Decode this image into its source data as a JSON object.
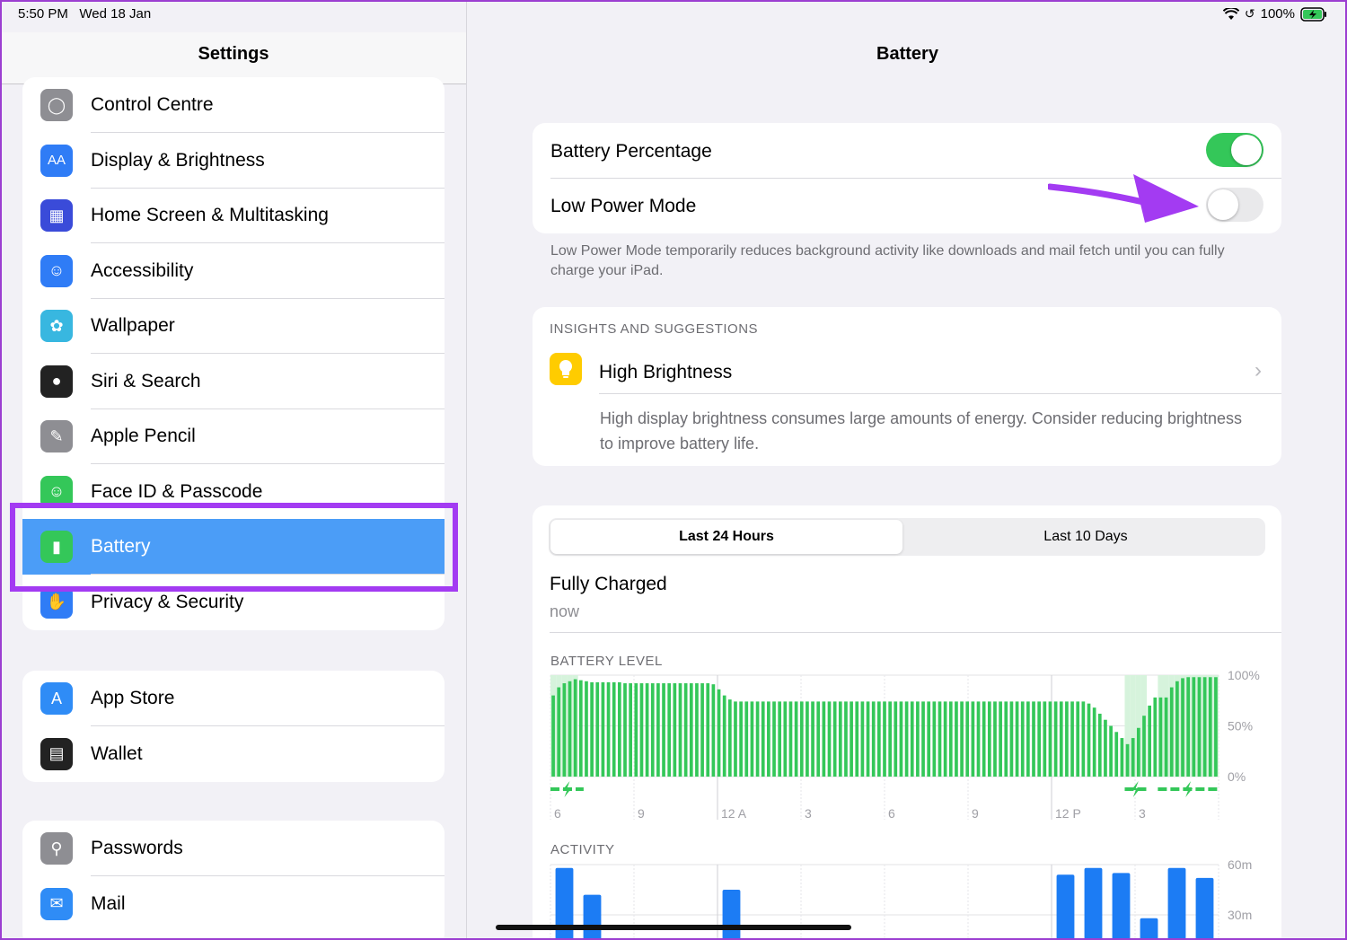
{
  "status": {
    "time": "5:50 PM",
    "date": "Wed 18 Jan",
    "battery": "100%"
  },
  "sidebar": {
    "title": "Settings",
    "group1": [
      {
        "label": "Control Centre",
        "icon": "toggles-icon",
        "color": "#8e8e93"
      },
      {
        "label": "Display & Brightness",
        "icon": "text-size-icon",
        "color": "#2f7cf6"
      },
      {
        "label": "Home Screen & Multitasking",
        "icon": "grid-icon",
        "color": "#3a4bd9"
      },
      {
        "label": "Accessibility",
        "icon": "accessibility-icon",
        "color": "#2f7cf6"
      },
      {
        "label": "Wallpaper",
        "icon": "flower-icon",
        "color": "#38b7e0"
      },
      {
        "label": "Siri & Search",
        "icon": "siri-icon",
        "color": "#222"
      },
      {
        "label": "Apple Pencil",
        "icon": "pencil-icon",
        "color": "#8e8e93"
      },
      {
        "label": "Face ID & Passcode",
        "icon": "face-id-icon",
        "color": "#34c759"
      },
      {
        "label": "Battery",
        "icon": "battery-icon",
        "color": "#34c759"
      },
      {
        "label": "Privacy & Security",
        "icon": "hand-icon",
        "color": "#2f7cf6"
      }
    ],
    "group2": [
      {
        "label": "App Store",
        "icon": "app-store-icon",
        "color": "#2f8cf6"
      },
      {
        "label": "Wallet",
        "icon": "wallet-icon",
        "color": "#222"
      }
    ],
    "group3": [
      {
        "label": "Passwords",
        "icon": "key-icon",
        "color": "#8e8e93"
      },
      {
        "label": "Mail",
        "icon": "mail-icon",
        "color": "#2f8cf6"
      }
    ]
  },
  "main": {
    "title": "Battery",
    "battery_percentage_label": "Battery Percentage",
    "battery_percentage_on": true,
    "low_power_label": "Low Power Mode",
    "low_power_on": false,
    "low_power_footnote": "Low Power Mode temporarily reduces background activity like downloads and mail fetch until you can fully charge your iPad.",
    "insights_header": "INSIGHTS AND SUGGESTIONS",
    "insight_title": "High Brightness",
    "insight_body": "High display brightness consumes large amounts of energy. Consider reducing brightness to improve battery life.",
    "seg_24h": "Last 24 Hours",
    "seg_10d": "Last 10 Days",
    "charged_title": "Fully Charged",
    "charged_time": "now",
    "battery_level_header": "BATTERY LEVEL",
    "activity_header": "ACTIVITY"
  },
  "chart_data": [
    {
      "type": "bar",
      "title": "BATTERY LEVEL",
      "ylim": [
        0,
        100
      ],
      "y_ticks": [
        "100%",
        "50%",
        "0%"
      ],
      "x_ticks": [
        "6",
        "9",
        "12 A",
        "3",
        "6",
        "9",
        "12 P",
        "3"
      ],
      "values": [
        80,
        88,
        92,
        94,
        96,
        95,
        94,
        93,
        93,
        93,
        93,
        93,
        93,
        92,
        92,
        92,
        92,
        92,
        92,
        92,
        92,
        92,
        92,
        92,
        92,
        92,
        92,
        92,
        92,
        91,
        86,
        80,
        76,
        74,
        74,
        74,
        74,
        74,
        74,
        74,
        74,
        74,
        74,
        74,
        74,
        74,
        74,
        74,
        74,
        74,
        74,
        74,
        74,
        74,
        74,
        74,
        74,
        74,
        74,
        74,
        74,
        74,
        74,
        74,
        74,
        74,
        74,
        74,
        74,
        74,
        74,
        74,
        74,
        74,
        74,
        74,
        74,
        74,
        74,
        74,
        74,
        74,
        74,
        74,
        74,
        74,
        74,
        74,
        74,
        74,
        74,
        74,
        74,
        74,
        74,
        74,
        74,
        72,
        68,
        62,
        56,
        50,
        44,
        38,
        32,
        38,
        48,
        60,
        70,
        78,
        78,
        78,
        88,
        94,
        97,
        98,
        98,
        98,
        98,
        98,
        98
      ],
      "charging": [
        true,
        true,
        true,
        true,
        true,
        false,
        false,
        false,
        false,
        false,
        false,
        false,
        false,
        false,
        false,
        false,
        false,
        false,
        false,
        false,
        false,
        false,
        false,
        false,
        false,
        false,
        false,
        false,
        false,
        false,
        false,
        false,
        false,
        false,
        false,
        false,
        false,
        false,
        false,
        false,
        false,
        false,
        false,
        false,
        false,
        false,
        false,
        false,
        false,
        false,
        false,
        false,
        false,
        false,
        false,
        false,
        false,
        false,
        false,
        false,
        false,
        false,
        false,
        false,
        false,
        false,
        false,
        false,
        false,
        false,
        false,
        false,
        false,
        false,
        false,
        false,
        false,
        false,
        false,
        false,
        false,
        false,
        false,
        false,
        false,
        false,
        false,
        false,
        false,
        false,
        false,
        false,
        false,
        false,
        false,
        false,
        false,
        false,
        false,
        false,
        false,
        false,
        false,
        false,
        true,
        true,
        true,
        true,
        false,
        false,
        true,
        true,
        true,
        true,
        true,
        true,
        true,
        true,
        true,
        true,
        true
      ],
      "color": "#34c759"
    },
    {
      "type": "bar",
      "title": "ACTIVITY",
      "y_ticks": [
        "60m",
        "30m"
      ],
      "ylim": [
        0,
        60
      ],
      "values": [
        60,
        0,
        0,
        0,
        0,
        0,
        0,
        0,
        0,
        0,
        0,
        0,
        0,
        0,
        0,
        0,
        0,
        0,
        0,
        0,
        0,
        0,
        0,
        0
      ],
      "bars": [
        {
          "slot": 0,
          "value": 58
        },
        {
          "slot": 1,
          "value": 42
        },
        {
          "slot": 6,
          "value": 45
        },
        {
          "slot": 18,
          "value": 54
        },
        {
          "slot": 19,
          "value": 58
        },
        {
          "slot": 20,
          "value": 55
        },
        {
          "slot": 21,
          "value": 28
        },
        {
          "slot": 22,
          "value": 58
        },
        {
          "slot": 23,
          "value": 52
        }
      ],
      "color": "#1c7cf4"
    }
  ]
}
